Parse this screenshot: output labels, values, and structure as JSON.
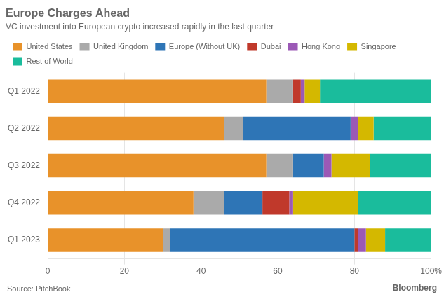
{
  "chart_data": {
    "type": "bar",
    "orientation": "horizontal",
    "stacked": true,
    "title": "Europe Charges Ahead",
    "subtitle": "VC investment into European crypto increased rapidly in the last quarter",
    "annotations": [
      "Source: PitchBook",
      "Bloomberg"
    ],
    "categories": [
      "Q1 2022",
      "Q2 2022",
      "Q3 2022",
      "Q4 2022",
      "Q1 2023"
    ],
    "series": [
      {
        "name": "United States",
        "color": "#E8922A",
        "values": [
          57,
          46,
          57,
          38,
          30
        ]
      },
      {
        "name": "United Kingdom",
        "color": "#AAAAAA",
        "values": [
          7,
          5,
          7,
          8,
          2
        ]
      },
      {
        "name": "Europe (Without UK)",
        "color": "#2E75B6",
        "values": [
          0,
          28,
          8,
          10,
          48
        ]
      },
      {
        "name": "Dubai",
        "color": "#C0392B",
        "values": [
          2,
          0,
          0,
          7,
          1
        ]
      },
      {
        "name": "Hong Kong",
        "color": "#9B59B6",
        "values": [
          1,
          2,
          2,
          1,
          2
        ]
      },
      {
        "name": "Singapore",
        "color": "#D4B800",
        "values": [
          4,
          4,
          10,
          17,
          5
        ]
      },
      {
        "name": "Rest of World",
        "color": "#1ABC9C",
        "values": [
          29,
          15,
          16,
          19,
          12
        ]
      }
    ],
    "xlim": [
      0,
      100
    ],
    "xticks": [
      0,
      20,
      40,
      60,
      80,
      {
        "value": 100,
        "label": "100%"
      }
    ],
    "grid": true,
    "legend": "top"
  }
}
